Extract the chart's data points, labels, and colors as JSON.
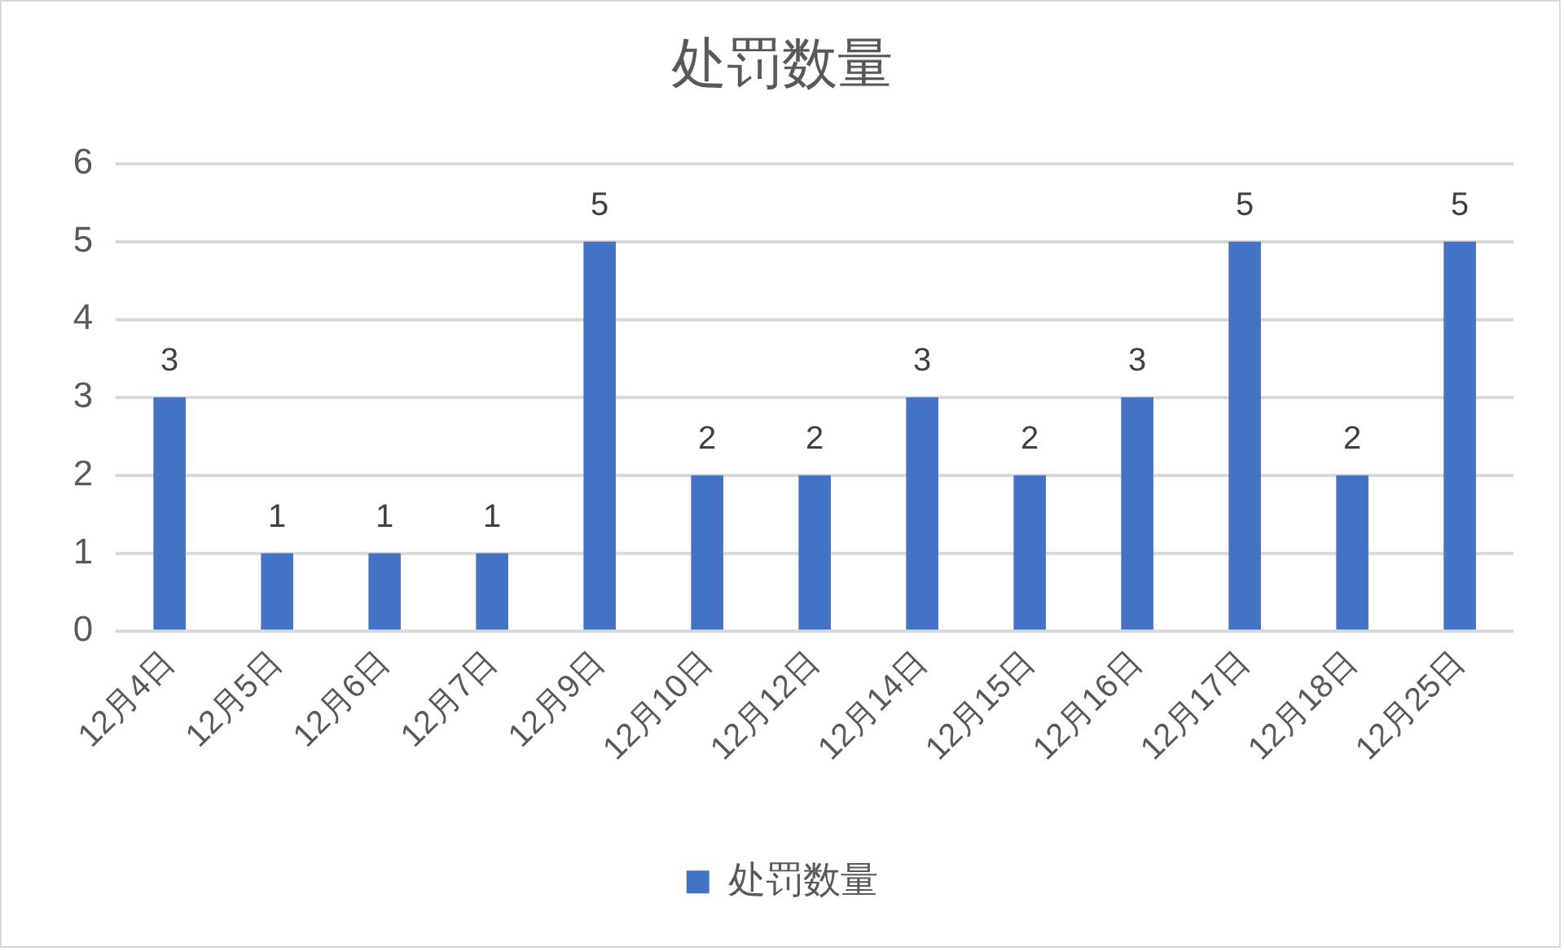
{
  "chart_data": {
    "type": "bar",
    "title": "处罚数量",
    "categories": [
      "12月4日",
      "12月5日",
      "12月6日",
      "12月7日",
      "12月9日",
      "12月10日",
      "12月12日",
      "12月14日",
      "12月15日",
      "12月16日",
      "12月17日",
      "12月18日",
      "12月25日"
    ],
    "series": [
      {
        "name": "处罚数量",
        "color": "#4472c4",
        "values": [
          3,
          1,
          1,
          1,
          5,
          2,
          2,
          3,
          2,
          3,
          5,
          2,
          5
        ]
      }
    ],
    "ylim": [
      0,
      6
    ],
    "yticks": [
      0,
      1,
      2,
      3,
      4,
      5,
      6
    ],
    "grid": "y",
    "legend": "bottom",
    "data_labels": true
  }
}
